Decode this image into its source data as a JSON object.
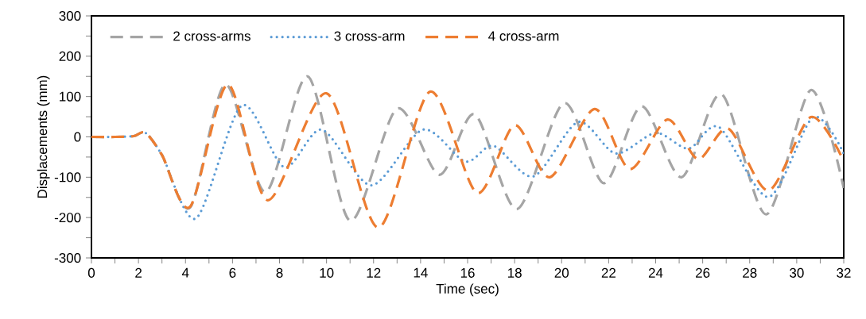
{
  "chart_data": {
    "type": "line",
    "xlabel": "Time (sec)",
    "ylabel": "Displacements (mm)",
    "xlim": [
      0,
      32
    ],
    "ylim": [
      -300,
      300
    ],
    "xticks": [
      0,
      {
        "value": 1,
        "label": null
      },
      2,
      {
        "value": 3,
        "label": null
      },
      4,
      {
        "value": 5,
        "label": null
      },
      6,
      {
        "value": 7,
        "label": null
      },
      8,
      {
        "value": 9,
        "label": null
      },
      10,
      {
        "value": 11,
        "label": null
      },
      12,
      {
        "value": 13,
        "label": null
      },
      14,
      {
        "value": 15,
        "label": null
      },
      16,
      {
        "value": 17,
        "label": null
      },
      18,
      {
        "value": 19,
        "label": null
      },
      20,
      {
        "value": 21,
        "label": null
      },
      22,
      {
        "value": 23,
        "label": null
      },
      24,
      {
        "value": 25,
        "label": null
      },
      26,
      {
        "value": 27,
        "label": null
      },
      28,
      {
        "value": 29,
        "label": null
      },
      30,
      {
        "value": 31,
        "label": null
      },
      32
    ],
    "yticks": [
      -300,
      {
        "value": -250,
        "label": null
      },
      -200,
      {
        "value": -150,
        "label": null
      },
      -100,
      {
        "value": -50,
        "label": null
      },
      0,
      {
        "value": 50,
        "label": null
      },
      100,
      {
        "value": 150,
        "label": null
      },
      200,
      {
        "value": 250,
        "label": null
      },
      300
    ],
    "grid": false,
    "legend": "top left",
    "marker": "none",
    "series": [
      {
        "name": "2 cross-arms",
        "color": "#a5a5a5",
        "line_style": "dashed",
        "x": [
          0,
          1,
          1.8,
          2.3,
          3.0,
          4.2,
          5.7,
          7.4,
          9.2,
          11.0,
          13.0,
          14.8,
          16.3,
          18.1,
          20.1,
          21.8,
          23.4,
          25.1,
          26.8,
          28.7,
          30.6,
          32
        ],
        "values": [
          0,
          0,
          2,
          10,
          -45,
          -175,
          130,
          -137,
          150,
          -208,
          70,
          -94,
          56,
          -179,
          84,
          -115,
          76,
          -100,
          106,
          -192,
          116,
          -127
        ]
      },
      {
        "name": "3 cross-arm",
        "color": "#5b9bd5",
        "line_style": "dotted",
        "x": [
          0,
          1,
          1.8,
          2.3,
          3.0,
          4.45,
          6.4,
          8.2,
          9.8,
          11.9,
          14.1,
          15.9,
          17.1,
          18.8,
          20.7,
          22.3,
          24.0,
          25.4,
          26.7,
          28.8,
          30.7,
          32
        ],
        "values": [
          0,
          0,
          2,
          10,
          -45,
          -202,
          78,
          -75,
          18,
          -120,
          18,
          -61,
          -22,
          -98,
          37,
          -41,
          10,
          -29,
          24,
          -149,
          49,
          -41
        ]
      },
      {
        "name": "4 cross-arm",
        "color": "#ed7d31",
        "line_style": "dashed",
        "x": [
          0,
          1,
          1.8,
          2.3,
          3.0,
          4.2,
          5.8,
          7.5,
          10.0,
          12.2,
          14.4,
          16.4,
          18.0,
          19.5,
          21.4,
          22.9,
          24.5,
          25.8,
          27.1,
          28.8,
          30.6,
          32
        ],
        "values": [
          0,
          0,
          2,
          10,
          -45,
          -173,
          130,
          -157,
          108,
          -225,
          112,
          -139,
          29,
          -100,
          69,
          -80,
          43,
          -55,
          20,
          -133,
          49,
          -60
        ]
      }
    ]
  }
}
